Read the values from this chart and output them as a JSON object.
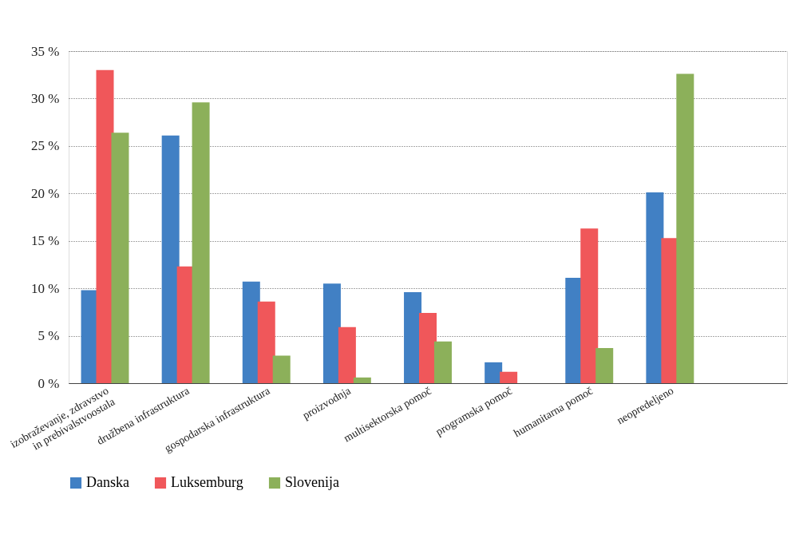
{
  "chart_data": {
    "type": "bar",
    "categories": [
      "izobraževanje, zdravstvo\nin prebivalstvoostala",
      "družbena infrastruktura",
      "gospodarska infrastruktura",
      "proizvodnja",
      "multisektorska pomoč",
      "programska pomoč",
      "humanitarna pomoč",
      "neopredeljeno",
      null
    ],
    "series": [
      {
        "name": "Danska",
        "color": "#4180c4",
        "values": [
          9.8,
          26.1,
          10.7,
          10.5,
          9.6,
          2.2,
          11.1,
          20.1,
          null
        ]
      },
      {
        "name": "Luksemburg",
        "color": "#f0575a",
        "values": [
          33.0,
          12.3,
          8.6,
          5.9,
          7.4,
          1.2,
          16.3,
          15.3,
          null
        ]
      },
      {
        "name": "Slovenija",
        "color": "#8cb05a",
        "values": [
          26.4,
          29.6,
          2.9,
          0.6,
          4.4,
          null,
          3.7,
          32.6,
          null
        ]
      }
    ],
    "ylim": [
      0,
      35
    ],
    "yticks": [
      {
        "value": 0,
        "label": "0 %"
      },
      {
        "value": 5,
        "label": "5 %"
      },
      {
        "value": 10,
        "label": "10 %"
      },
      {
        "value": 15,
        "label": "15 %"
      },
      {
        "value": 20,
        "label": "20 %"
      },
      {
        "value": 25,
        "label": "25 %"
      },
      {
        "value": 30,
        "label": "30 %"
      },
      {
        "value": 35,
        "label": "35 %"
      }
    ],
    "grid": "y",
    "legend": "bottom"
  }
}
